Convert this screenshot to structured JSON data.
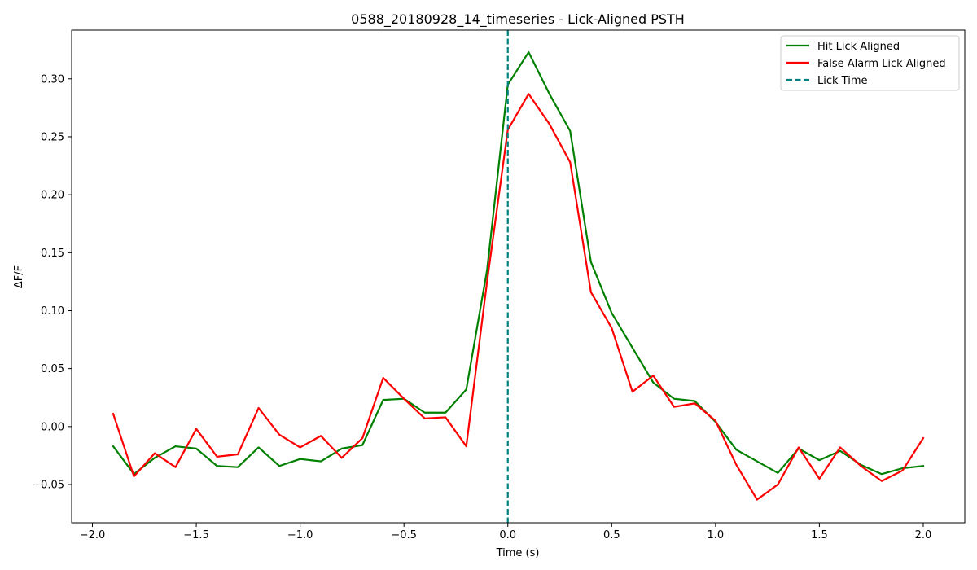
{
  "chart_data": {
    "type": "line",
    "title": "0588_20180928_14_timeseries - Lick-Aligned PSTH",
    "xlabel": "Time (s)",
    "ylabel": "ΔF/F",
    "xlim": [
      -2.1,
      2.2
    ],
    "ylim": [
      -0.083,
      0.342
    ],
    "xticks": [
      -2.0,
      -1.5,
      -1.0,
      -0.5,
      0.0,
      0.5,
      1.0,
      1.5,
      2.0
    ],
    "xtick_labels": [
      "−2.0",
      "−1.5",
      "−1.0",
      "−0.5",
      "0.0",
      "0.5",
      "1.0",
      "1.5",
      "2.0"
    ],
    "yticks": [
      -0.05,
      0.0,
      0.05,
      0.1,
      0.15,
      0.2,
      0.25,
      0.3
    ],
    "ytick_labels": [
      "−0.05",
      "0.00",
      "0.05",
      "0.10",
      "0.15",
      "0.20",
      "0.25",
      "0.30"
    ],
    "grid": false,
    "legend_position": "top-right",
    "x": [
      -1.9,
      -1.8,
      -1.7,
      -1.6,
      -1.5,
      -1.4,
      -1.3,
      -1.2,
      -1.1,
      -1.0,
      -0.9,
      -0.8,
      -0.7,
      -0.6,
      -0.5,
      -0.4,
      -0.3,
      -0.2,
      -0.1,
      0.0,
      0.1,
      0.2,
      0.3,
      0.4,
      0.5,
      0.6,
      0.7,
      0.8,
      0.9,
      1.0,
      1.1,
      1.2,
      1.3,
      1.4,
      1.5,
      1.6,
      1.7,
      1.8,
      1.9,
      2.0
    ],
    "series": [
      {
        "name": "Hit Lick Aligned",
        "color": "#008000",
        "style": "solid",
        "values": [
          -0.017,
          -0.041,
          -0.027,
          -0.017,
          -0.019,
          -0.034,
          -0.035,
          -0.018,
          -0.034,
          -0.028,
          -0.03,
          -0.019,
          -0.016,
          0.023,
          0.024,
          0.012,
          0.012,
          0.032,
          0.135,
          0.295,
          0.323,
          0.287,
          0.255,
          0.142,
          0.098,
          0.068,
          0.038,
          0.024,
          0.022,
          0.004,
          -0.02,
          -0.03,
          -0.04,
          -0.019,
          -0.029,
          -0.021,
          -0.033,
          -0.041,
          -0.036,
          -0.034
        ]
      },
      {
        "name": "False Alarm Lick Aligned",
        "color": "#ff0000",
        "style": "solid",
        "values": [
          0.011,
          -0.043,
          -0.023,
          -0.035,
          -0.002,
          -0.026,
          -0.024,
          0.016,
          -0.007,
          -0.018,
          -0.008,
          -0.027,
          -0.01,
          0.042,
          0.024,
          0.007,
          0.008,
          -0.017,
          0.125,
          0.256,
          0.287,
          0.261,
          0.228,
          0.116,
          0.085,
          0.03,
          0.044,
          0.017,
          0.02,
          0.005,
          -0.033,
          -0.063,
          -0.05,
          -0.018,
          -0.045,
          -0.018,
          -0.034,
          -0.047,
          -0.038,
          -0.01
        ]
      }
    ],
    "vlines": [
      {
        "name": "Lick Time",
        "x": 0.0,
        "color": "#008080",
        "style": "dashed"
      }
    ]
  }
}
